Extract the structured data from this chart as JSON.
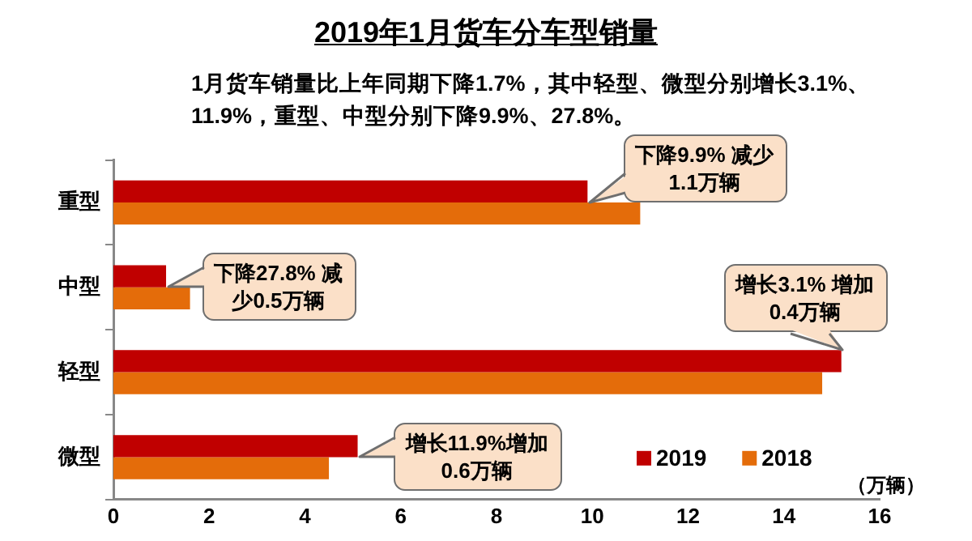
{
  "chart_data": {
    "type": "bar",
    "orientation": "horizontal",
    "title": "2019年1月货车分车型销量",
    "subtitle": "1月货车销量比上年同期下降1.7%，其中轻型、微型分别增长3.1%、11.9%，重型、中型分别下降9.9%、27.8%。",
    "xlabel": "（万辆）",
    "categories": [
      "重型",
      "中型",
      "轻型",
      "微型"
    ],
    "series": [
      {
        "name": "2019",
        "color": "#c00000",
        "values": [
          9.9,
          1.1,
          15.2,
          5.1
        ]
      },
      {
        "name": "2018",
        "color": "#e46c0a",
        "values": [
          11.0,
          1.6,
          14.8,
          4.5
        ]
      }
    ],
    "xlim": [
      0,
      16
    ],
    "xticks": [
      0,
      2,
      4,
      6,
      8,
      10,
      12,
      14,
      16
    ],
    "grid": false,
    "legend": "bottom right",
    "annotations": [
      {
        "text": "下降9.9% 减少1.1万辆",
        "x": 9.9,
        "y": "重型"
      },
      {
        "text": "下降27.8% 减少0.5万辆",
        "x": 1.1,
        "y": "中型"
      },
      {
        "text": "增长3.1% 增加0.4万辆",
        "x": 15.2,
        "y": "轻型"
      },
      {
        "text": "增长11.9%增加0.6万辆",
        "x": 5.1,
        "y": "微型"
      }
    ]
  }
}
